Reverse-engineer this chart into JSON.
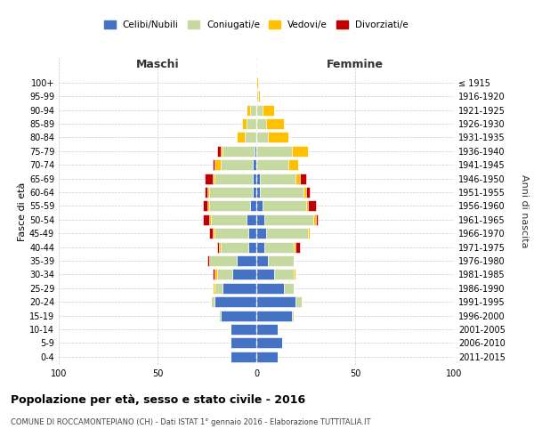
{
  "age_groups": [
    "0-4",
    "5-9",
    "10-14",
    "15-19",
    "20-24",
    "25-29",
    "30-34",
    "35-39",
    "40-44",
    "45-49",
    "50-54",
    "55-59",
    "60-64",
    "65-69",
    "70-74",
    "75-79",
    "80-84",
    "85-89",
    "90-94",
    "95-99",
    "100+"
  ],
  "birth_years": [
    "2011-2015",
    "2006-2010",
    "2001-2005",
    "1996-2000",
    "1991-1995",
    "1986-1990",
    "1981-1985",
    "1976-1980",
    "1971-1975",
    "1966-1970",
    "1961-1965",
    "1956-1960",
    "1951-1955",
    "1946-1950",
    "1941-1945",
    "1936-1940",
    "1931-1935",
    "1926-1930",
    "1921-1925",
    "1916-1920",
    "≤ 1915"
  ],
  "maschi": {
    "celibi": [
      13,
      13,
      13,
      18,
      21,
      17,
      12,
      10,
      4,
      4,
      5,
      3,
      2,
      2,
      2,
      1,
      0,
      0,
      0,
      0,
      0
    ],
    "coniugati": [
      0,
      0,
      0,
      1,
      2,
      4,
      8,
      14,
      14,
      17,
      18,
      21,
      22,
      19,
      16,
      16,
      6,
      5,
      3,
      0,
      0
    ],
    "vedovi": [
      0,
      0,
      0,
      0,
      0,
      1,
      1,
      0,
      1,
      1,
      1,
      1,
      1,
      1,
      3,
      1,
      4,
      2,
      2,
      0,
      0
    ],
    "divorziati": [
      0,
      0,
      0,
      0,
      0,
      0,
      1,
      1,
      1,
      2,
      3,
      2,
      1,
      4,
      1,
      2,
      0,
      0,
      0,
      0,
      0
    ]
  },
  "femmine": {
    "nubili": [
      11,
      13,
      11,
      18,
      20,
      14,
      9,
      6,
      4,
      5,
      4,
      3,
      2,
      2,
      0,
      0,
      0,
      0,
      0,
      0,
      0
    ],
    "coniugate": [
      0,
      0,
      0,
      1,
      3,
      5,
      10,
      13,
      15,
      21,
      25,
      22,
      22,
      18,
      16,
      18,
      6,
      5,
      3,
      1,
      0
    ],
    "vedove": [
      0,
      0,
      0,
      0,
      0,
      0,
      1,
      0,
      1,
      1,
      1,
      1,
      1,
      2,
      5,
      8,
      10,
      9,
      6,
      1,
      1
    ],
    "divorziate": [
      0,
      0,
      0,
      0,
      0,
      0,
      0,
      0,
      2,
      0,
      1,
      4,
      2,
      3,
      0,
      0,
      0,
      0,
      0,
      0,
      0
    ]
  },
  "colors": {
    "celibi": "#4472c4",
    "coniugati": "#c5d9a0",
    "vedovi": "#ffc000",
    "divorziati": "#c00000"
  },
  "xlim": 100,
  "title": "Popolazione per età, sesso e stato civile - 2016",
  "subtitle": "COMUNE DI ROCCAMONTEPIANO (CH) - Dati ISTAT 1° gennaio 2016 - Elaborazione TUTTITALIA.IT",
  "ylabel_left": "Fasce di età",
  "ylabel_right": "Anni di nascita",
  "xlabel_left": "Maschi",
  "xlabel_right": "Femmine",
  "bg_color": "#ffffff",
  "grid_color": "#cccccc"
}
